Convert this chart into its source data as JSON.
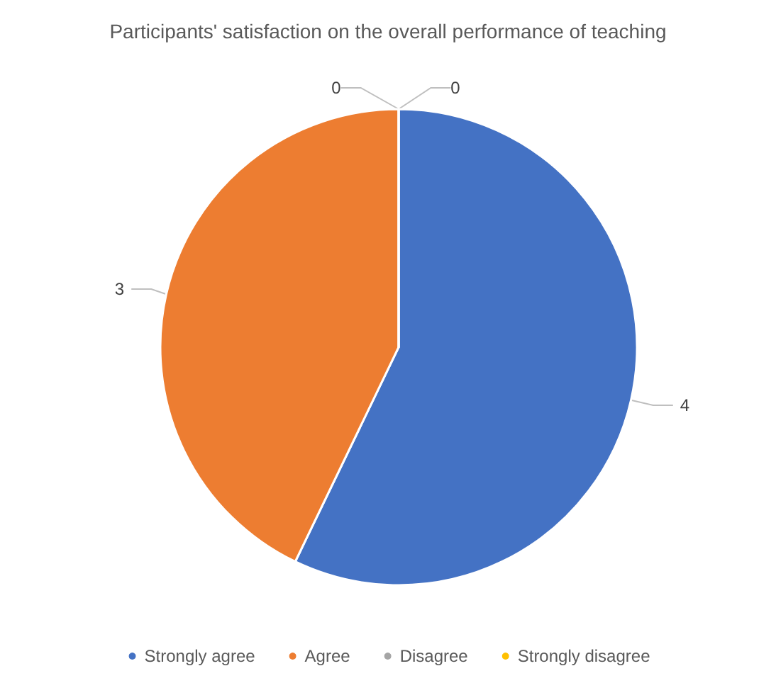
{
  "chart_data": {
    "type": "pie",
    "title": "Participants' satisfaction on the overall performance of teaching",
    "categories": [
      "Strongly agree",
      "Agree",
      "Disagree",
      "Strongly disagree"
    ],
    "values": [
      4,
      3,
      0,
      0
    ],
    "colors": [
      "#4472c4",
      "#ed7d31",
      "#a5a5a5",
      "#ffc000"
    ],
    "value_labels": [
      "4",
      "3",
      "0",
      "0"
    ],
    "legend": "bottom"
  }
}
